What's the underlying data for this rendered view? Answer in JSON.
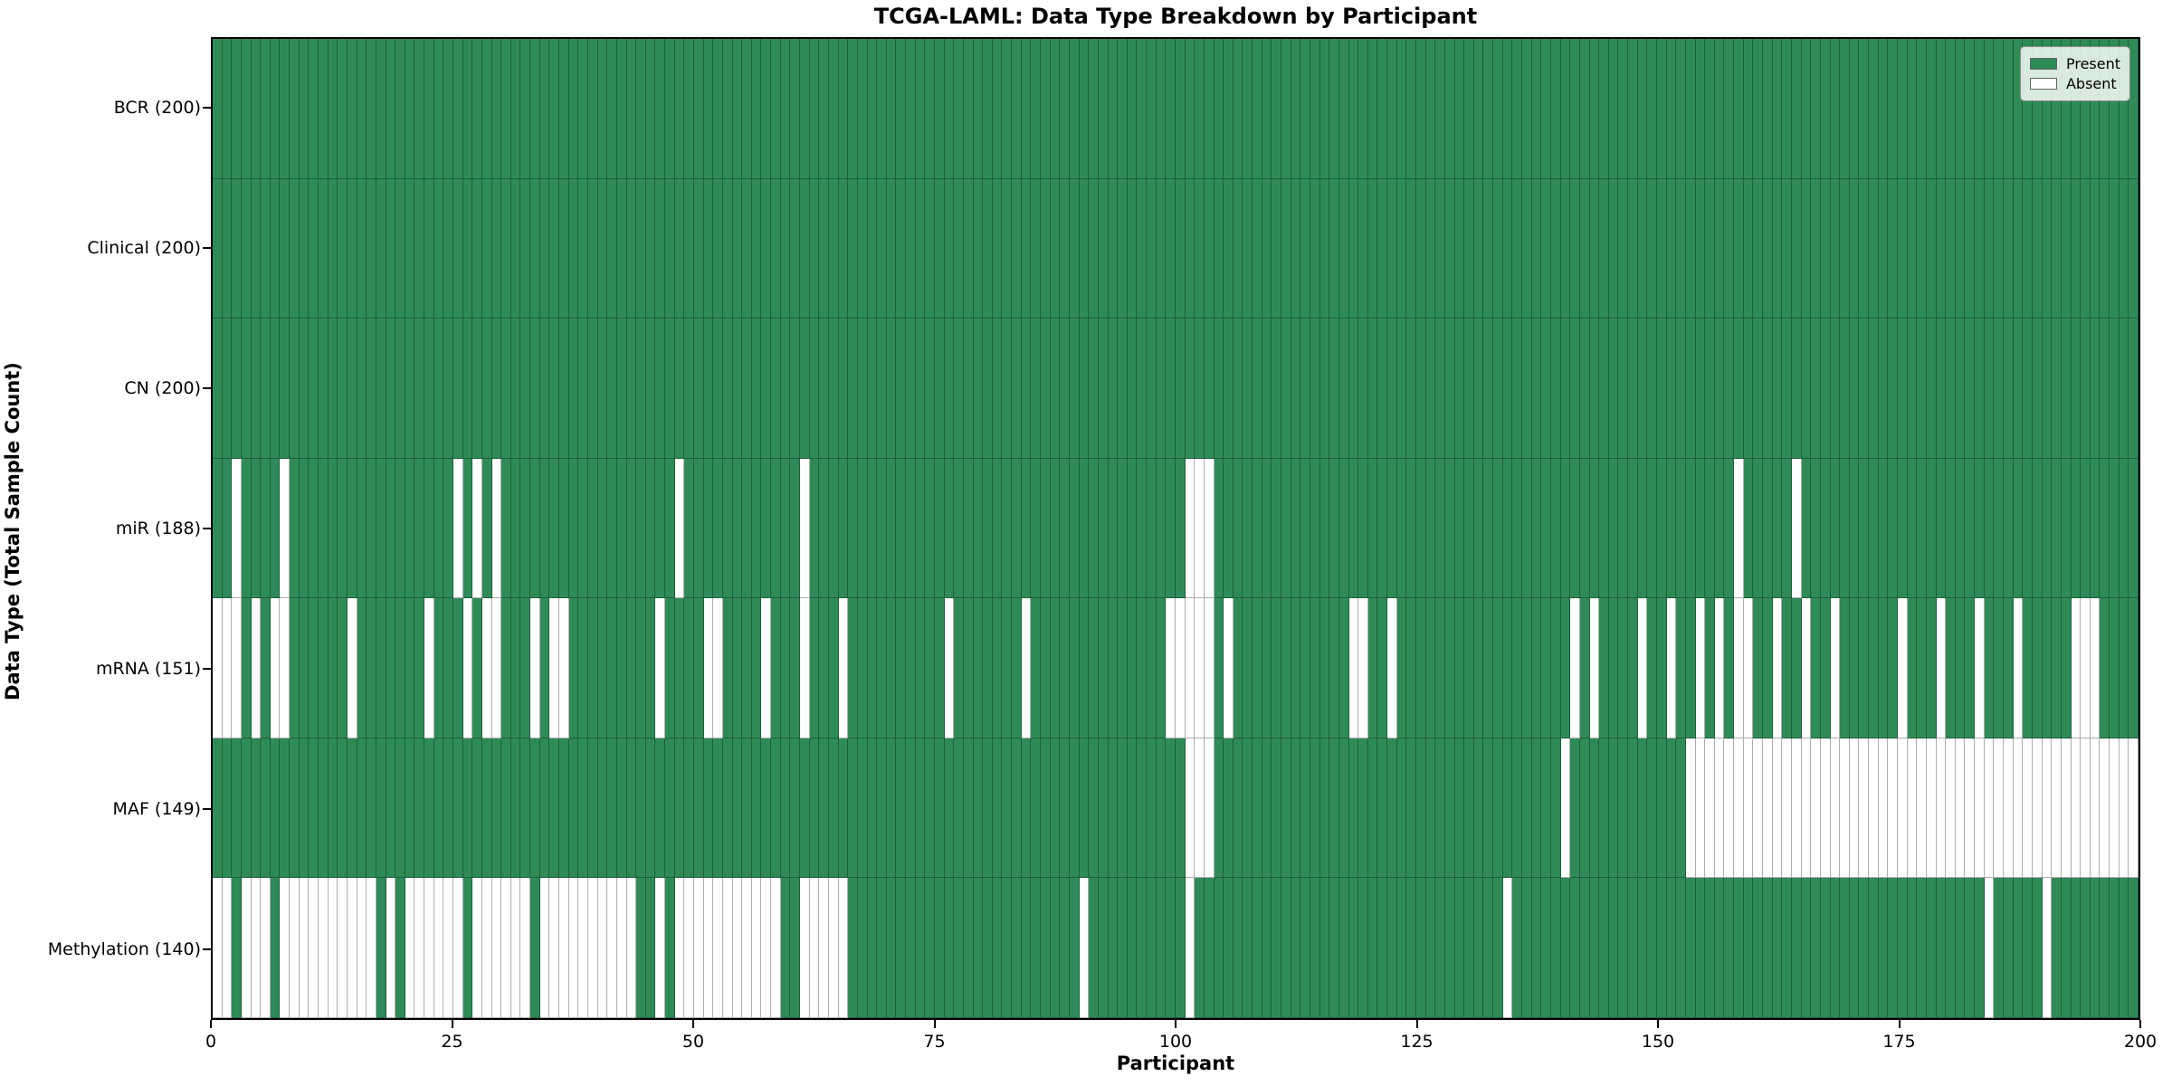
{
  "title": "TCGA-LAML: Data Type Breakdown by Participant",
  "xlabel": "Participant",
  "ylabel": "Data Type (Total Sample Count)",
  "legend": {
    "present_label": "Present",
    "absent_label": "Absent"
  },
  "colors": {
    "present": "#2e8b57",
    "absent": "#ffffff",
    "grid": "rgba(0,0,0,0.32)",
    "frame": "#000000"
  },
  "x_ticks": [
    0,
    25,
    50,
    75,
    100,
    125,
    150,
    175,
    200
  ],
  "chart_data": {
    "type": "heatmap",
    "x_label": "Participant",
    "x_range": [
      0,
      200
    ],
    "n_columns": 200,
    "value_legend": {
      "1": "Present",
      "0": "Absent"
    },
    "rows": [
      {
        "label": "BCR (200)",
        "data_type": "BCR",
        "total_samples": 200,
        "absent_participants": []
      },
      {
        "label": "Clinical (200)",
        "data_type": "Clinical",
        "total_samples": 200,
        "absent_participants": []
      },
      {
        "label": "CN (200)",
        "data_type": "CN",
        "total_samples": 200,
        "absent_participants": []
      },
      {
        "label": "miR (188)",
        "data_type": "miR",
        "total_samples": 188,
        "absent_participants": [
          2,
          7,
          25,
          27,
          29,
          48,
          61,
          101,
          102,
          103,
          158,
          164
        ]
      },
      {
        "label": "mRNA (151)",
        "data_type": "mRNA",
        "total_samples": 151,
        "absent_participants": [
          0,
          1,
          2,
          4,
          6,
          7,
          14,
          22,
          26,
          28,
          29,
          33,
          35,
          36,
          46,
          51,
          52,
          57,
          61,
          65,
          76,
          84,
          99,
          100,
          101,
          102,
          103,
          105,
          118,
          119,
          122,
          141,
          143,
          148,
          151,
          154,
          156,
          158,
          159,
          162,
          165,
          168,
          175,
          179,
          183,
          187,
          193,
          194,
          195
        ]
      },
      {
        "label": "MAF (149)",
        "data_type": "MAF",
        "total_samples": 149,
        "absent_participants": [
          101,
          102,
          103,
          140,
          153,
          154,
          155,
          156,
          157,
          158,
          159,
          160,
          161,
          162,
          163,
          164,
          165,
          166,
          167,
          168,
          169,
          170,
          171,
          172,
          173,
          174,
          175,
          176,
          177,
          178,
          179,
          180,
          181,
          182,
          183,
          184,
          185,
          186,
          187,
          188,
          189,
          190,
          191,
          192,
          193,
          194,
          195,
          196,
          197,
          198,
          199
        ]
      },
      {
        "label": "Methylation (140)",
        "data_type": "Methylation",
        "total_samples": 140,
        "absent_participants": [
          0,
          1,
          3,
          4,
          5,
          7,
          8,
          9,
          10,
          11,
          12,
          13,
          14,
          15,
          16,
          18,
          20,
          21,
          22,
          23,
          24,
          25,
          27,
          28,
          29,
          30,
          31,
          32,
          34,
          35,
          36,
          37,
          38,
          39,
          40,
          41,
          42,
          43,
          46,
          48,
          49,
          50,
          51,
          52,
          53,
          54,
          55,
          56,
          57,
          58,
          61,
          62,
          63,
          64,
          65,
          90,
          101,
          134,
          184,
          190
        ]
      }
    ]
  }
}
